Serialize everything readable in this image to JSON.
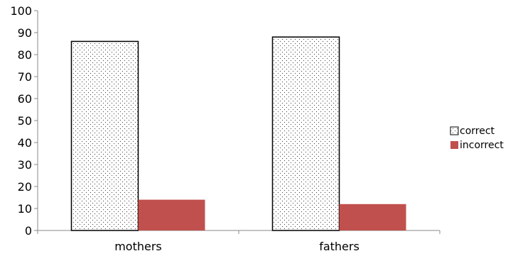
{
  "chart_data": {
    "type": "bar",
    "categories": [
      "mothers",
      "fathers"
    ],
    "series": [
      {
        "name": "correct",
        "values": [
          86,
          88
        ],
        "color": "#ffffff",
        "pattern": "dotted"
      },
      {
        "name": "incorrect",
        "values": [
          14,
          12
        ],
        "color": "#c0504d",
        "pattern": "solid"
      }
    ],
    "title": "",
    "xlabel": "",
    "ylabel": "",
    "ylim": [
      0,
      100
    ],
    "yticks": [
      0,
      10,
      20,
      30,
      40,
      50,
      60,
      70,
      80,
      90,
      100
    ],
    "grid": false,
    "legend": "right"
  }
}
